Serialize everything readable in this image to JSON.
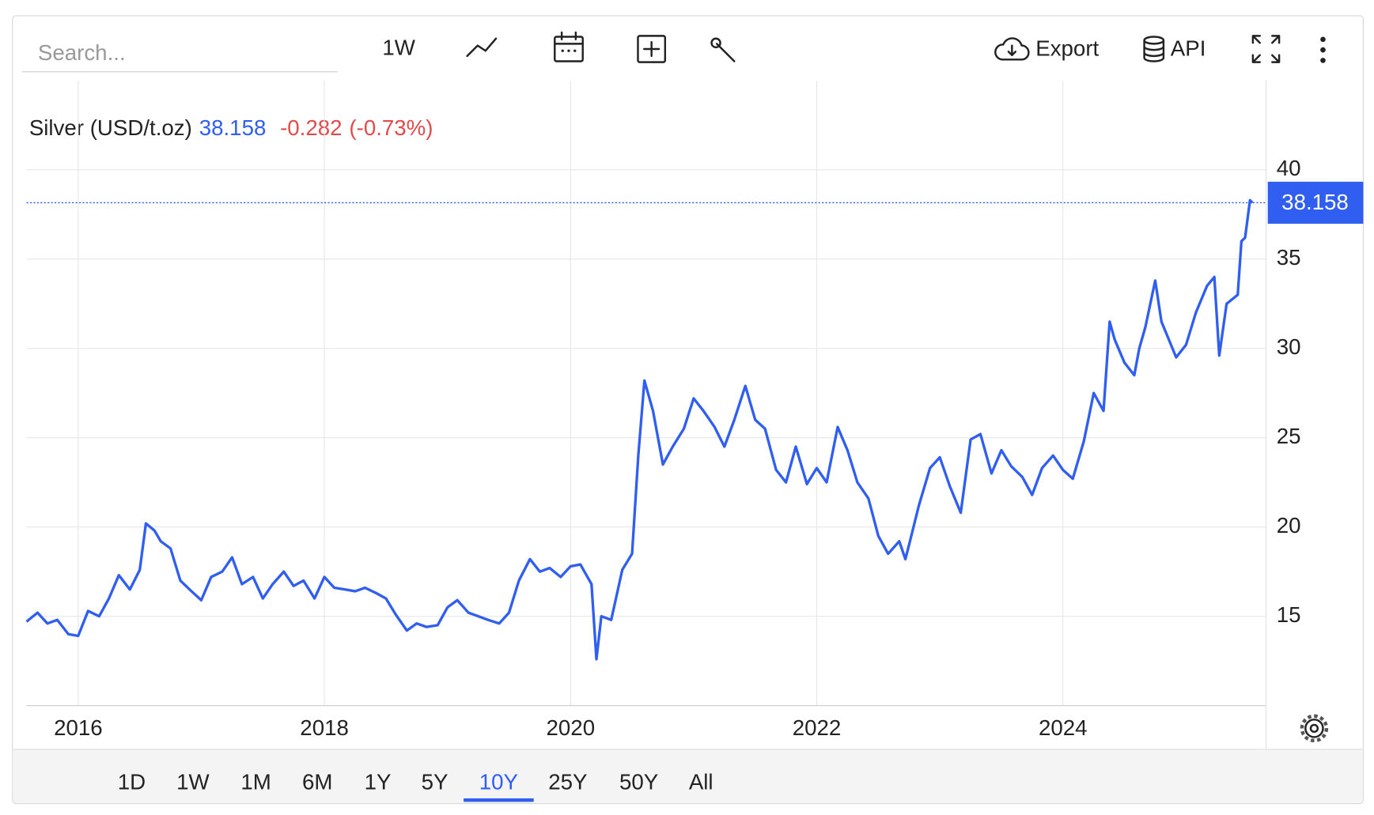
{
  "ui": {
    "search_placeholder": "Search...",
    "interval": "1W",
    "export": "Export",
    "api": "API",
    "ranges": [
      "1D",
      "1W",
      "1M",
      "6M",
      "1Y",
      "5Y",
      "10Y",
      "25Y",
      "50Y",
      "All"
    ],
    "active_range": 6
  },
  "chart_data": {
    "type": "line",
    "x": [
      2015.58,
      2015.67,
      2015.75,
      2015.83,
      2015.92,
      2016.0,
      2016.08,
      2016.17,
      2016.25,
      2016.33,
      2016.42,
      2016.5,
      2016.55,
      2016.62,
      2016.67,
      2016.75,
      2016.83,
      2016.92,
      2017.0,
      2017.08,
      2017.17,
      2017.25,
      2017.33,
      2017.42,
      2017.5,
      2017.58,
      2017.67,
      2017.75,
      2017.83,
      2017.92,
      2018.0,
      2018.08,
      2018.17,
      2018.25,
      2018.33,
      2018.42,
      2018.5,
      2018.58,
      2018.67,
      2018.75,
      2018.83,
      2018.92,
      2019.0,
      2019.08,
      2019.17,
      2019.25,
      2019.33,
      2019.42,
      2019.5,
      2019.58,
      2019.67,
      2019.75,
      2019.83,
      2019.92,
      2020.0,
      2020.08,
      2020.17,
      2020.21,
      2020.25,
      2020.33,
      2020.42,
      2020.5,
      2020.55,
      2020.6,
      2020.67,
      2020.75,
      2020.83,
      2020.92,
      2021.0,
      2021.08,
      2021.17,
      2021.25,
      2021.33,
      2021.42,
      2021.5,
      2021.58,
      2021.67,
      2021.75,
      2021.83,
      2021.92,
      2022.0,
      2022.08,
      2022.17,
      2022.25,
      2022.33,
      2022.42,
      2022.5,
      2022.58,
      2022.67,
      2022.72,
      2022.75,
      2022.83,
      2022.92,
      2023.0,
      2023.08,
      2023.17,
      2023.25,
      2023.33,
      2023.42,
      2023.5,
      2023.58,
      2023.67,
      2023.75,
      2023.83,
      2023.92,
      2024.0,
      2024.08,
      2024.17,
      2024.25,
      2024.33,
      2024.38,
      2024.42,
      2024.5,
      2024.58,
      2024.62,
      2024.67,
      2024.75,
      2024.8,
      2024.83,
      2024.92,
      2025.0,
      2025.08,
      2025.17,
      2025.23,
      2025.27,
      2025.33,
      2025.42,
      2025.45,
      2025.48,
      2025.52,
      2025.54
    ],
    "series": [
      {
        "name": "Silver (USD/t.oz)",
        "color": "#2f5ef0",
        "values": [
          14.7,
          15.2,
          14.6,
          14.8,
          14.0,
          13.9,
          15.3,
          15.0,
          16.0,
          17.3,
          16.5,
          17.6,
          20.2,
          19.8,
          19.2,
          18.8,
          17.0,
          16.4,
          15.9,
          17.2,
          17.5,
          18.3,
          16.8,
          17.2,
          16.0,
          16.8,
          17.5,
          16.7,
          17.0,
          16.0,
          17.2,
          16.6,
          16.5,
          16.4,
          16.6,
          16.3,
          16.0,
          15.1,
          14.2,
          14.6,
          14.4,
          14.5,
          15.5,
          15.9,
          15.2,
          15.0,
          14.8,
          14.6,
          15.2,
          17.0,
          18.2,
          17.5,
          17.7,
          17.2,
          17.8,
          17.9,
          16.8,
          12.6,
          15.0,
          14.8,
          17.6,
          18.5,
          24.0,
          28.2,
          26.5,
          23.5,
          24.5,
          25.5,
          27.2,
          26.5,
          25.6,
          24.5,
          26.0,
          27.9,
          26.0,
          25.5,
          23.2,
          22.5,
          24.5,
          22.4,
          23.3,
          22.5,
          25.6,
          24.3,
          22.5,
          21.6,
          19.5,
          18.5,
          19.2,
          18.2,
          19.0,
          21.2,
          23.3,
          23.9,
          22.3,
          20.8,
          24.9,
          25.2,
          23.0,
          24.3,
          23.4,
          22.8,
          21.8,
          23.3,
          24.0,
          23.2,
          22.7,
          24.8,
          27.5,
          26.5,
          31.5,
          30.5,
          29.2,
          28.5,
          30.0,
          31.2,
          33.8,
          31.5,
          31.0,
          29.5,
          30.2,
          32.0,
          33.5,
          34.0,
          29.6,
          32.5,
          33.0,
          36.0,
          36.2,
          38.3,
          38.158
        ]
      }
    ],
    "last": 38.158,
    "change": -0.282,
    "change_pct": "(-0.73%)",
    "xlim": [
      2015.58,
      2025.65
    ],
    "xticks": [
      2016,
      2018,
      2020,
      2022,
      2024
    ],
    "ylim": [
      10,
      45
    ],
    "yticks": [
      15,
      20,
      25,
      30,
      35,
      40
    ],
    "grid": true
  }
}
